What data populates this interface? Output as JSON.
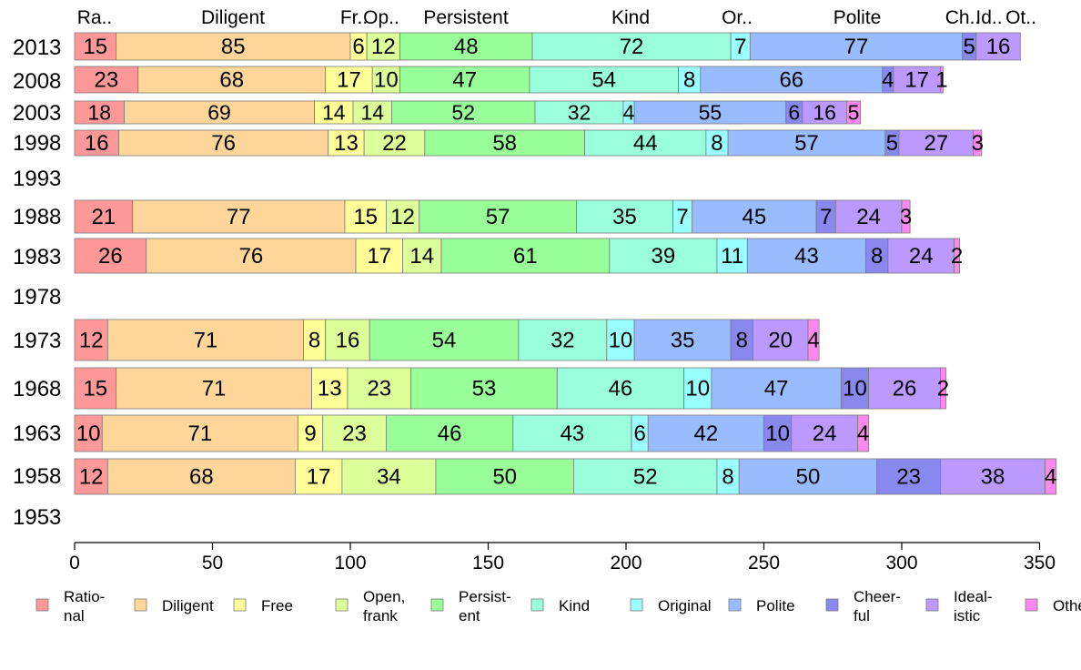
{
  "chart_data": {
    "type": "bar",
    "orientation": "horizontal",
    "stacked": true,
    "xlim": [
      0,
      355
    ],
    "xticks": [
      0,
      50,
      100,
      150,
      200,
      250,
      300,
      350
    ],
    "grid": false,
    "legend_position": "bottom",
    "top_labels": [
      "Ra..",
      "Diligent",
      "Fr..",
      "Op..",
      "Persistent",
      "Kind",
      "Or..",
      "Polite",
      "Ch..",
      "Id..",
      "Ot.."
    ],
    "categories": [
      "Rational",
      "Diligent",
      "Free",
      "Open, frank",
      "Persistent",
      "Kind",
      "Original",
      "Polite",
      "Cheerful",
      "Idealistic",
      "Other"
    ],
    "legend_labels": [
      [
        "Ratio-",
        "nal"
      ],
      [
        "Diligent"
      ],
      [
        "Free"
      ],
      [
        "Open,",
        "frank"
      ],
      [
        "Persist-",
        "ent"
      ],
      [
        "Kind"
      ],
      [
        "Original"
      ],
      [
        "Polite"
      ],
      [
        "Cheer-",
        "ful"
      ],
      [
        "Ideal-",
        "istic"
      ],
      [
        "Other"
      ]
    ],
    "colors": [
      "#ff9999",
      "#ffd699",
      "#ffff99",
      "#ddff99",
      "#99ff99",
      "#99ffdd",
      "#99ffff",
      "#99bbff",
      "#8888ee",
      "#bb99ff",
      "#ff88ee"
    ],
    "rows": [
      {
        "year": "2013",
        "values": [
          15,
          85,
          6,
          12,
          48,
          72,
          7,
          77,
          5,
          16,
          0
        ]
      },
      {
        "year": "2008",
        "values": [
          23,
          68,
          17,
          10,
          47,
          54,
          8,
          66,
          4,
          17,
          1
        ]
      },
      {
        "year": "2003",
        "values": [
          18,
          69,
          14,
          14,
          52,
          32,
          4,
          55,
          6,
          16,
          5
        ]
      },
      {
        "year": "1998",
        "values": [
          16,
          76,
          13,
          22,
          58,
          44,
          8,
          57,
          5,
          27,
          3
        ]
      },
      {
        "year": "1993",
        "values": []
      },
      {
        "year": "1988",
        "values": [
          21,
          77,
          15,
          12,
          57,
          35,
          7,
          45,
          7,
          24,
          3
        ]
      },
      {
        "year": "1983",
        "values": [
          26,
          76,
          17,
          14,
          61,
          39,
          11,
          43,
          8,
          24,
          2
        ]
      },
      {
        "year": "1978",
        "values": []
      },
      {
        "year": "1973",
        "values": [
          12,
          71,
          8,
          16,
          54,
          32,
          10,
          35,
          8,
          20,
          4
        ]
      },
      {
        "year": "1968",
        "values": [
          15,
          71,
          13,
          23,
          53,
          46,
          10,
          47,
          10,
          26,
          2
        ]
      },
      {
        "year": "1963",
        "values": [
          10,
          71,
          9,
          23,
          46,
          43,
          6,
          42,
          10,
          24,
          4
        ]
      },
      {
        "year": "1958",
        "values": [
          12,
          68,
          17,
          34,
          50,
          52,
          8,
          50,
          23,
          38,
          4
        ]
      },
      {
        "year": "1953",
        "values": []
      }
    ],
    "stacked_small_labels": {
      "2003": [
        [
          "1",
          "5"
        ]
      ],
      "1973": [
        [
          "2",
          "4"
        ]
      ],
      "1968": [
        [
          "1",
          "2"
        ]
      ],
      "1963": [
        [
          "1",
          "4"
        ]
      ],
      "1983": [
        [
          "1",
          "2"
        ]
      ]
    }
  }
}
